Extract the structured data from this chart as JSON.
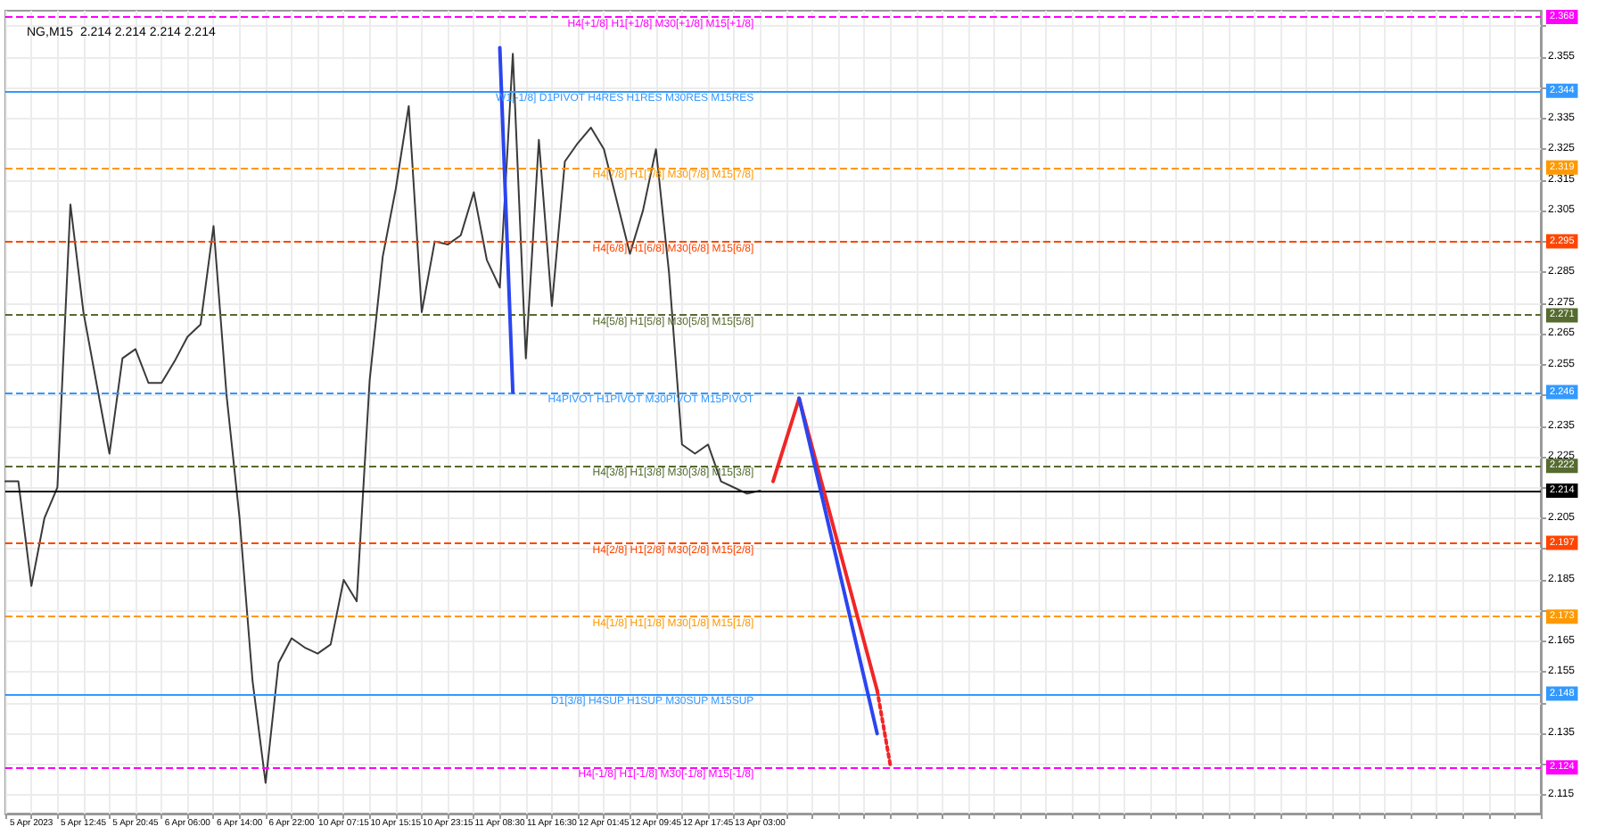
{
  "chart_data": {
    "type": "line",
    "title": "NG,M15  2.214 2.214 2.214 2.214",
    "categories": [
      null,
      null,
      "5 Apr 2023",
      null,
      null,
      null,
      "5 Apr 12:45",
      null,
      null,
      null,
      "5 Apr 20:45",
      null,
      null,
      null,
      "6 Apr 06:00",
      null,
      null,
      null,
      "6 Apr 14:00",
      null,
      null,
      null,
      "6 Apr 22:00",
      null,
      null,
      null,
      "10 Apr 07:15",
      null,
      null,
      null,
      "10 Apr 15:15",
      null,
      null,
      null,
      "10 Apr 23:15",
      null,
      null,
      null,
      "11 Apr 08:30",
      null,
      null,
      null,
      "11 Apr 16:30",
      null,
      null,
      null,
      "12 Apr 01:45",
      null,
      null,
      null,
      "12 Apr 09:45",
      null,
      null,
      null,
      "12 Apr 17:45",
      null,
      null,
      null,
      "13 Apr 03:00",
      null,
      null,
      null,
      null,
      null,
      null,
      null,
      null,
      null,
      null,
      null,
      null,
      null,
      null,
      null,
      null,
      null,
      null,
      null,
      null,
      null,
      null,
      null,
      null,
      null,
      null,
      null,
      null,
      null,
      null,
      null,
      null,
      null,
      null,
      null,
      null,
      null,
      null,
      null,
      null,
      null,
      null,
      null,
      null,
      null,
      null,
      null,
      null,
      null,
      null,
      null,
      null,
      null,
      null,
      null,
      null,
      null,
      null,
      null,
      null
    ],
    "series": [
      {
        "color": "#3a3a3a",
        "values": [
          2.217,
          2.217,
          2.183,
          2.205,
          2.215,
          2.307,
          2.272,
          2.249,
          2.226,
          2.257,
          2.26,
          2.249,
          2.249,
          2.256,
          2.264,
          2.268,
          2.3,
          2.245,
          2.205,
          2.152,
          2.119,
          2.158,
          2.166,
          2.163,
          2.161,
          2.164,
          2.185,
          2.178,
          2.25,
          2.29,
          2.312,
          2.339,
          2.272,
          2.295,
          2.294,
          2.297,
          2.311,
          2.289,
          2.28,
          2.356,
          2.257,
          2.328,
          2.274,
          2.321,
          2.327,
          2.332,
          2.325,
          2.308,
          2.291,
          2.305,
          2.325,
          2.285,
          2.229,
          2.226,
          2.229,
          2.217,
          2.215,
          2.213,
          2.214,
          null,
          null,
          null,
          null,
          null,
          null,
          null,
          null,
          null,
          null,
          null,
          null,
          null,
          null,
          null,
          null,
          null,
          null,
          null,
          null,
          null,
          null,
          null,
          null,
          null,
          null,
          null,
          null,
          null,
          null,
          null,
          null,
          null,
          null,
          null,
          null,
          null,
          null,
          null,
          null,
          null,
          null,
          null,
          null,
          null,
          null,
          null,
          null,
          null,
          null,
          null,
          null,
          null,
          null,
          null,
          null,
          null,
          null,
          null,
          null
        ]
      },
      {
        "color": "#2b45f0",
        "values": [
          null,
          null,
          null,
          null,
          null,
          null,
          null,
          null,
          null,
          null,
          null,
          null,
          null,
          null,
          null,
          null,
          null,
          null,
          null,
          null,
          null,
          null,
          null,
          null,
          null,
          null,
          null,
          null,
          null,
          null,
          null,
          null,
          null,
          null,
          null,
          null,
          null,
          null,
          2.358,
          2.246,
          null,
          null,
          null,
          null,
          null,
          null,
          null,
          null,
          null,
          null,
          null,
          null,
          null,
          null,
          null,
          null,
          null,
          null,
          null,
          null,
          null,
          null,
          null,
          null,
          null,
          null,
          null,
          null,
          null,
          null,
          null,
          null,
          null,
          null,
          null,
          null,
          null,
          null,
          null,
          null,
          null,
          null,
          null,
          null,
          null,
          null,
          null,
          null,
          null,
          null,
          null,
          null,
          null,
          null,
          null,
          null,
          null,
          null,
          null,
          null,
          null,
          null,
          null,
          null,
          null,
          null,
          null,
          null,
          null,
          null,
          null,
          null,
          null,
          null,
          null,
          null,
          null,
          null,
          null
        ]
      },
      {
        "color": "#f02626",
        "values": [
          null,
          null,
          null,
          null,
          null,
          null,
          null,
          null,
          null,
          null,
          null,
          null,
          null,
          null,
          null,
          null,
          null,
          null,
          null,
          null,
          null,
          null,
          null,
          null,
          null,
          null,
          null,
          null,
          null,
          null,
          null,
          null,
          null,
          null,
          null,
          null,
          null,
          null,
          null,
          null,
          null,
          null,
          null,
          null,
          null,
          null,
          null,
          null,
          null,
          null,
          null,
          null,
          null,
          null,
          null,
          null,
          null,
          null,
          null,
          2.217,
          null,
          2.244,
          null,
          null,
          null,
          null,
          null,
          2.149,
          null,
          null,
          null,
          null,
          null,
          null,
          null,
          null,
          null,
          null,
          null,
          null,
          null,
          null,
          null,
          null,
          null,
          null,
          null,
          null,
          null,
          null,
          null,
          null,
          null,
          null,
          null,
          null,
          null,
          null,
          null,
          null,
          null,
          null,
          null,
          null,
          null,
          null,
          null,
          null,
          null,
          null,
          null,
          null,
          null,
          null,
          null,
          null,
          null,
          null,
          null
        ]
      },
      {
        "color": "#f02626",
        "line_style": "dotted",
        "values": [
          null,
          null,
          null,
          null,
          null,
          null,
          null,
          null,
          null,
          null,
          null,
          null,
          null,
          null,
          null,
          null,
          null,
          null,
          null,
          null,
          null,
          null,
          null,
          null,
          null,
          null,
          null,
          null,
          null,
          null,
          null,
          null,
          null,
          null,
          null,
          null,
          null,
          null,
          null,
          null,
          null,
          null,
          null,
          null,
          null,
          null,
          null,
          null,
          null,
          null,
          null,
          null,
          null,
          null,
          null,
          null,
          null,
          null,
          null,
          null,
          null,
          null,
          null,
          null,
          null,
          null,
          null,
          2.149,
          2.125,
          null,
          null,
          null,
          null,
          null,
          null,
          null,
          null,
          null,
          null,
          null,
          null,
          null,
          null,
          null,
          null,
          null,
          null,
          null,
          null,
          null,
          null,
          null,
          null,
          null,
          null,
          null,
          null,
          null,
          null,
          null,
          null,
          null,
          null,
          null,
          null,
          null,
          null,
          null,
          null,
          null,
          null,
          null,
          null,
          null,
          null,
          null,
          null,
          null,
          null
        ]
      },
      {
        "color": "#2b45f0",
        "values": [
          null,
          null,
          null,
          null,
          null,
          null,
          null,
          null,
          null,
          null,
          null,
          null,
          null,
          null,
          null,
          null,
          null,
          null,
          null,
          null,
          null,
          null,
          null,
          null,
          null,
          null,
          null,
          null,
          null,
          null,
          null,
          null,
          null,
          null,
          null,
          null,
          null,
          null,
          null,
          null,
          null,
          null,
          null,
          null,
          null,
          null,
          null,
          null,
          null,
          null,
          null,
          null,
          null,
          null,
          null,
          null,
          null,
          null,
          null,
          null,
          null,
          2.244,
          null,
          null,
          null,
          null,
          null,
          2.135,
          null,
          null,
          null,
          null,
          null,
          null,
          null,
          null,
          null,
          null,
          null,
          null,
          null,
          null,
          null,
          null,
          null,
          null,
          null,
          null,
          null,
          null,
          null,
          null,
          null,
          null,
          null,
          null,
          null,
          null,
          null,
          null,
          null,
          null,
          null,
          null,
          null,
          null,
          null,
          null,
          null,
          null,
          null,
          null,
          null,
          null,
          null,
          null,
          null,
          null,
          null
        ]
      }
    ],
    "ylim": [
      2.109,
      2.37
    ],
    "yticks": [
      2.115,
      {
        "value": 2.125,
        "label": null
      },
      2.135,
      {
        "value": 2.145,
        "label": null
      },
      2.155,
      2.165,
      {
        "value": 2.175,
        "label": null
      },
      2.185,
      {
        "value": 2.195,
        "label": null
      },
      2.205,
      {
        "value": 2.215,
        "label": null
      },
      2.225,
      2.235,
      {
        "value": 2.245,
        "label": null
      },
      2.255,
      2.265,
      2.275,
      2.285,
      {
        "value": 2.295,
        "label": null
      },
      2.305,
      2.315,
      2.325,
      2.335,
      {
        "value": 2.345,
        "label": null
      },
      2.355,
      {
        "value": 2.365,
        "label": null
      }
    ],
    "ref_lines": [
      {
        "axis": "y",
        "value": 2.368,
        "label": "2.368",
        "color": "#ff00ff",
        "line_style": "dashed"
      },
      {
        "axis": "y",
        "value": 2.344,
        "label": "2.344",
        "color": "#3399ff",
        "line_style": "solid"
      },
      {
        "axis": "y",
        "value": 2.319,
        "label": "2.319",
        "color": "#ff9900",
        "line_style": "dashed"
      },
      {
        "axis": "y",
        "value": 2.295,
        "label": "2.295",
        "color": "#ff4500",
        "line_style": "dashed"
      },
      {
        "axis": "y",
        "value": 2.271,
        "label": "2.271",
        "color": "#556b2f",
        "line_style": "dashed"
      },
      {
        "axis": "y",
        "value": 2.246,
        "label": "2.246",
        "color": "#3399ff",
        "line_style": "dashed"
      },
      {
        "axis": "y",
        "value": 2.222,
        "label": "2.222",
        "color": "#556b2f",
        "line_style": "dashed"
      },
      {
        "axis": "y",
        "value": 2.197,
        "label": "2.197",
        "color": "#ff4500",
        "line_style": "dashed"
      },
      {
        "axis": "y",
        "value": 2.173,
        "label": "2.173",
        "color": "#ff9900",
        "line_style": "dashed"
      },
      {
        "axis": "y",
        "value": 2.148,
        "label": "2.148",
        "color": "#3399ff",
        "line_style": "solid"
      },
      {
        "axis": "y",
        "value": 2.124,
        "label": "2.124",
        "color": "#ff00ff",
        "line_style": "dashed"
      },
      {
        "axis": "y",
        "value": 2.214,
        "label": "2.214",
        "color": "#000000",
        "line_style": "solid"
      }
    ],
    "annotations": [
      "H4[+1/8] H1[+1/8] M30[+1/8] M15[+1/8]",
      "W1[-1/8] D1PIVOT H4RES H1RES M30RES M15RES",
      "H4[7/8] H1[7/8] M30[7/8] M15[7/8]",
      "H4[6/8] H1[6/8] M30[6/8] M15[6/8]",
      "H4[5/8] H1[5/8] M30[5/8] M15[5/8]",
      "H4PIVOT H1PIVOT M30PIVOT M15PIVOT",
      "H4[3/8] H1[3/8] M30[3/8] M15[3/8]",
      "H4[2/8] H1[2/8] M30[2/8] M15[2/8]",
      "H4[1/8] H1[1/8] M30[1/8] M15[1/8]",
      "D1[3/8] H4SUP H1SUP M30SUP M15SUP",
      "H4[-1/8] H1[-1/8] M30[-1/8] M15[-1/8]"
    ],
    "grid": true,
    "marker": "none",
    "line_style": "solid"
  }
}
